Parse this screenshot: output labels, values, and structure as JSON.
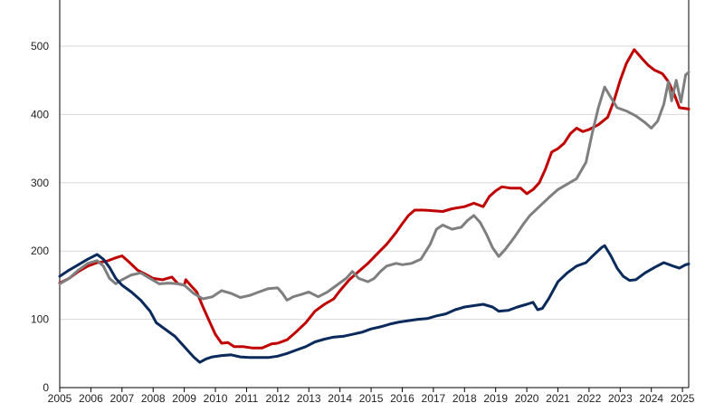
{
  "chart_data": {
    "type": "line",
    "title": "",
    "xlabel": "",
    "ylabel": "",
    "xlim": [
      2005,
      2025.2
    ],
    "ylim": [
      0,
      550
    ],
    "grid": true,
    "y_ticks": [
      0,
      100,
      200,
      300,
      400,
      500
    ],
    "x_ticks": [
      2005,
      2006,
      2007,
      2008,
      2009,
      2010,
      2011,
      2012,
      2013,
      2014,
      2015,
      2016,
      2017,
      2018,
      2019,
      2020,
      2021,
      2022,
      2023,
      2024,
      2025
    ],
    "series": [
      {
        "color": "#c00000",
        "points": [
          [
            2005.0,
            153
          ],
          [
            2005.3,
            160
          ],
          [
            2005.6,
            170
          ],
          [
            2005.9,
            178
          ],
          [
            2006.2,
            183
          ],
          [
            2006.5,
            185
          ],
          [
            2006.8,
            190
          ],
          [
            2007.0,
            193
          ],
          [
            2007.2,
            185
          ],
          [
            2007.5,
            172
          ],
          [
            2007.8,
            165
          ],
          [
            2008.0,
            160
          ],
          [
            2008.3,
            158
          ],
          [
            2008.6,
            162
          ],
          [
            2008.8,
            152
          ],
          [
            2009.0,
            150
          ],
          [
            2009.05,
            158
          ],
          [
            2009.2,
            150
          ],
          [
            2009.4,
            140
          ],
          [
            2009.6,
            118
          ],
          [
            2009.8,
            98
          ],
          [
            2010.0,
            78
          ],
          [
            2010.2,
            65
          ],
          [
            2010.4,
            66
          ],
          [
            2010.6,
            60
          ],
          [
            2010.9,
            60
          ],
          [
            2011.2,
            58
          ],
          [
            2011.5,
            58
          ],
          [
            2011.8,
            64
          ],
          [
            2012.0,
            65
          ],
          [
            2012.3,
            70
          ],
          [
            2012.6,
            82
          ],
          [
            2012.9,
            95
          ],
          [
            2013.2,
            112
          ],
          [
            2013.5,
            122
          ],
          [
            2013.8,
            130
          ],
          [
            2014.0,
            142
          ],
          [
            2014.3,
            158
          ],
          [
            2014.6,
            170
          ],
          [
            2014.9,
            182
          ],
          [
            2015.2,
            196
          ],
          [
            2015.5,
            210
          ],
          [
            2015.8,
            227
          ],
          [
            2016.0,
            240
          ],
          [
            2016.2,
            252
          ],
          [
            2016.4,
            260
          ],
          [
            2016.7,
            260
          ],
          [
            2017.0,
            259
          ],
          [
            2017.3,
            258
          ],
          [
            2017.6,
            262
          ],
          [
            2018.0,
            265
          ],
          [
            2018.3,
            270
          ],
          [
            2018.6,
            265
          ],
          [
            2018.8,
            280
          ],
          [
            2019.0,
            288
          ],
          [
            2019.2,
            294
          ],
          [
            2019.5,
            292
          ],
          [
            2019.8,
            292
          ],
          [
            2020.0,
            284
          ],
          [
            2020.2,
            290
          ],
          [
            2020.4,
            300
          ],
          [
            2020.6,
            320
          ],
          [
            2020.8,
            345
          ],
          [
            2021.0,
            350
          ],
          [
            2021.2,
            358
          ],
          [
            2021.4,
            372
          ],
          [
            2021.6,
            380
          ],
          [
            2021.8,
            375
          ],
          [
            2022.0,
            378
          ],
          [
            2022.3,
            385
          ],
          [
            2022.6,
            396
          ],
          [
            2022.8,
            420
          ],
          [
            2023.0,
            450
          ],
          [
            2023.2,
            475
          ],
          [
            2023.45,
            495
          ],
          [
            2023.7,
            482
          ],
          [
            2023.9,
            472
          ],
          [
            2024.1,
            465
          ],
          [
            2024.35,
            460
          ],
          [
            2024.55,
            448
          ],
          [
            2024.75,
            428
          ],
          [
            2024.9,
            410
          ],
          [
            2025.2,
            408
          ]
        ]
      },
      {
        "color": "#7f7f7f",
        "points": [
          [
            2005.0,
            152
          ],
          [
            2005.3,
            160
          ],
          [
            2005.6,
            172
          ],
          [
            2005.9,
            182
          ],
          [
            2006.2,
            186
          ],
          [
            2006.4,
            178
          ],
          [
            2006.6,
            160
          ],
          [
            2006.8,
            152
          ],
          [
            2007.0,
            158
          ],
          [
            2007.3,
            165
          ],
          [
            2007.6,
            168
          ],
          [
            2007.9,
            160
          ],
          [
            2008.2,
            152
          ],
          [
            2008.5,
            153
          ],
          [
            2008.8,
            152
          ],
          [
            2009.0,
            150
          ],
          [
            2009.3,
            138
          ],
          [
            2009.6,
            130
          ],
          [
            2009.9,
            133
          ],
          [
            2010.2,
            142
          ],
          [
            2010.5,
            138
          ],
          [
            2010.8,
            132
          ],
          [
            2011.1,
            135
          ],
          [
            2011.4,
            140
          ],
          [
            2011.7,
            145
          ],
          [
            2012.0,
            146
          ],
          [
            2012.15,
            138
          ],
          [
            2012.3,
            128
          ],
          [
            2012.5,
            133
          ],
          [
            2012.8,
            137
          ],
          [
            2013.0,
            140
          ],
          [
            2013.3,
            133
          ],
          [
            2013.6,
            140
          ],
          [
            2013.9,
            150
          ],
          [
            2014.2,
            160
          ],
          [
            2014.4,
            170
          ],
          [
            2014.6,
            160
          ],
          [
            2014.9,
            155
          ],
          [
            2015.1,
            160
          ],
          [
            2015.3,
            170
          ],
          [
            2015.5,
            178
          ],
          [
            2015.8,
            182
          ],
          [
            2016.0,
            180
          ],
          [
            2016.3,
            182
          ],
          [
            2016.6,
            188
          ],
          [
            2016.9,
            210
          ],
          [
            2017.1,
            232
          ],
          [
            2017.3,
            238
          ],
          [
            2017.6,
            232
          ],
          [
            2017.9,
            235
          ],
          [
            2018.1,
            245
          ],
          [
            2018.3,
            252
          ],
          [
            2018.5,
            242
          ],
          [
            2018.7,
            225
          ],
          [
            2018.9,
            205
          ],
          [
            2019.1,
            192
          ],
          [
            2019.3,
            202
          ],
          [
            2019.6,
            220
          ],
          [
            2019.9,
            240
          ],
          [
            2020.1,
            252
          ],
          [
            2020.4,
            265
          ],
          [
            2020.7,
            278
          ],
          [
            2021.0,
            290
          ],
          [
            2021.3,
            298
          ],
          [
            2021.6,
            306
          ],
          [
            2021.9,
            330
          ],
          [
            2022.1,
            372
          ],
          [
            2022.3,
            410
          ],
          [
            2022.5,
            440
          ],
          [
            2022.7,
            425
          ],
          [
            2022.9,
            410
          ],
          [
            2023.2,
            405
          ],
          [
            2023.5,
            398
          ],
          [
            2023.8,
            388
          ],
          [
            2024.0,
            380
          ],
          [
            2024.2,
            390
          ],
          [
            2024.4,
            415
          ],
          [
            2024.55,
            448
          ],
          [
            2024.65,
            420
          ],
          [
            2024.8,
            450
          ],
          [
            2024.95,
            418
          ],
          [
            2025.1,
            458
          ],
          [
            2025.2,
            462
          ]
        ]
      },
      {
        "color": "#0b2a5c",
        "points": [
          [
            2005.0,
            163
          ],
          [
            2005.3,
            172
          ],
          [
            2005.6,
            180
          ],
          [
            2005.9,
            188
          ],
          [
            2006.2,
            195
          ],
          [
            2006.4,
            188
          ],
          [
            2006.6,
            176
          ],
          [
            2006.8,
            160
          ],
          [
            2007.0,
            150
          ],
          [
            2007.3,
            140
          ],
          [
            2007.6,
            128
          ],
          [
            2007.9,
            112
          ],
          [
            2008.1,
            95
          ],
          [
            2008.4,
            85
          ],
          [
            2008.7,
            75
          ],
          [
            2009.0,
            60
          ],
          [
            2009.3,
            45
          ],
          [
            2009.5,
            37
          ],
          [
            2009.7,
            42
          ],
          [
            2009.9,
            45
          ],
          [
            2010.2,
            47
          ],
          [
            2010.5,
            48
          ],
          [
            2010.8,
            45
          ],
          [
            2011.1,
            44
          ],
          [
            2011.4,
            44
          ],
          [
            2011.7,
            44
          ],
          [
            2012.0,
            46
          ],
          [
            2012.3,
            50
          ],
          [
            2012.6,
            55
          ],
          [
            2012.9,
            60
          ],
          [
            2013.2,
            67
          ],
          [
            2013.5,
            71
          ],
          [
            2013.8,
            74
          ],
          [
            2014.1,
            75
          ],
          [
            2014.4,
            78
          ],
          [
            2014.7,
            81
          ],
          [
            2015.0,
            86
          ],
          [
            2015.3,
            89
          ],
          [
            2015.6,
            93
          ],
          [
            2015.9,
            96
          ],
          [
            2016.2,
            98
          ],
          [
            2016.5,
            100
          ],
          [
            2016.8,
            101
          ],
          [
            2017.1,
            105
          ],
          [
            2017.4,
            108
          ],
          [
            2017.7,
            114
          ],
          [
            2018.0,
            118
          ],
          [
            2018.3,
            120
          ],
          [
            2018.6,
            122
          ],
          [
            2018.9,
            118
          ],
          [
            2019.1,
            112
          ],
          [
            2019.4,
            113
          ],
          [
            2019.7,
            118
          ],
          [
            2020.0,
            122
          ],
          [
            2020.2,
            125
          ],
          [
            2020.35,
            114
          ],
          [
            2020.5,
            116
          ],
          [
            2020.7,
            130
          ],
          [
            2021.0,
            155
          ],
          [
            2021.3,
            168
          ],
          [
            2021.6,
            178
          ],
          [
            2021.9,
            183
          ],
          [
            2022.1,
            192
          ],
          [
            2022.4,
            205
          ],
          [
            2022.5,
            208
          ],
          [
            2022.7,
            193
          ],
          [
            2022.9,
            175
          ],
          [
            2023.1,
            163
          ],
          [
            2023.3,
            157
          ],
          [
            2023.5,
            158
          ],
          [
            2023.8,
            168
          ],
          [
            2024.1,
            176
          ],
          [
            2024.4,
            183
          ],
          [
            2024.7,
            178
          ],
          [
            2024.9,
            175
          ],
          [
            2025.1,
            180
          ],
          [
            2025.2,
            181
          ]
        ]
      }
    ]
  }
}
